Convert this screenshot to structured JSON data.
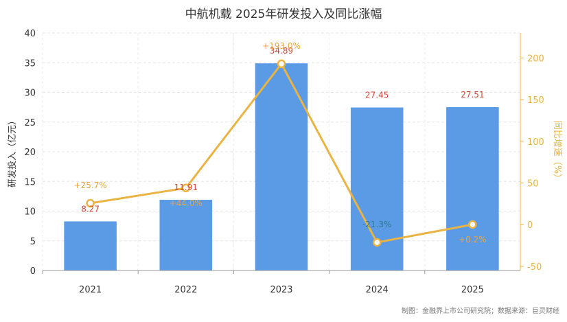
{
  "chart_data": {
    "type": "bar",
    "title": "中航机载 2025年研发投入及同比涨幅",
    "categories": [
      "2021",
      "2022",
      "2023",
      "2024",
      "2025"
    ],
    "series": [
      {
        "values": [
          8.27,
          11.91,
          34.89,
          27.45,
          27.51
        ],
        "labels": [
          "8.27",
          "11.91",
          "34.89",
          "27.45",
          "27.51"
        ],
        "axis": "left",
        "type": "bar"
      },
      {
        "values": [
          25.7,
          44.0,
          193.0,
          -21.3,
          0.2
        ],
        "labels": [
          "+25.7%",
          "+44.0%",
          "+193.0%",
          "-21.3%",
          "+0.2%"
        ],
        "axis": "right",
        "type": "line"
      }
    ],
    "ylabel": "研发投入（亿元）",
    "ylabel_right": "同比增速（%）",
    "ylim": [
      0,
      40
    ],
    "yticks": [
      "0",
      "5",
      "10",
      "15",
      "20",
      "25",
      "30",
      "35",
      "40"
    ],
    "ylim_right": [
      -55,
      230
    ],
    "yticks_right": [
      "-50",
      "0",
      "50",
      "100",
      "150",
      "200"
    ],
    "grid": true,
    "colors": {
      "bar": "#5b9be6",
      "line": "#e9b443",
      "bar_label": "#c94a3a",
      "line_label": "#e9a43a",
      "negative_label": "#2a7a8c",
      "right_axis": "#e9b443"
    },
    "source": "制图：金融界上市公司研究院；数据来源：巨灵财经"
  }
}
